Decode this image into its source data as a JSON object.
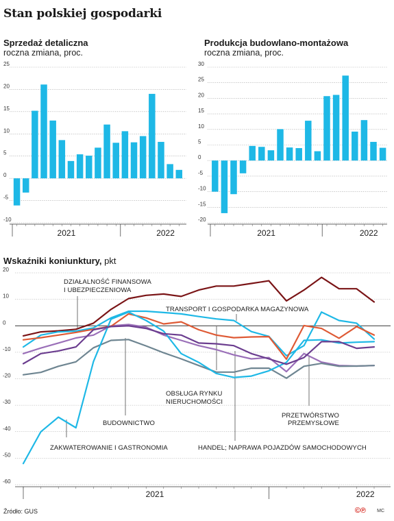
{
  "page": {
    "title": "Stan polskiej gospodarki"
  },
  "footer": {
    "source": "Źródło: GUS",
    "logo": "©℗",
    "author": "MC"
  },
  "chart_data": [
    {
      "type": "bar",
      "title": "Sprzedaż detaliczna",
      "subtitle": "roczna zmiana, proc.",
      "color": "#1eb8e6",
      "ylim": [
        -10,
        25
      ],
      "yticks": [
        25,
        20,
        15,
        10,
        5,
        0,
        -5,
        -10
      ],
      "year_labels": [
        {
          "label": "2021",
          "month_index": 5.5
        },
        {
          "label": "2022",
          "month_index": 16.5
        }
      ],
      "year_dividers": [
        -0.5,
        11.5,
        23.5
      ],
      "values": [
        -6.1,
        -3.2,
        15.2,
        21.1,
        13.0,
        8.6,
        3.9,
        5.4,
        5.1,
        6.9,
        12.1,
        8.0,
        10.6,
        8.1,
        9.5,
        19.0,
        8.2,
        3.2,
        1.9
      ]
    },
    {
      "type": "bar",
      "title": "Produkcja budowlano-montażowa",
      "subtitle": "roczna zmiana, proc.",
      "color": "#1eb8e6",
      "ylim": [
        -20,
        30
      ],
      "yticks": [
        30,
        25,
        20,
        15,
        10,
        5,
        0,
        -5,
        -10,
        -15,
        -20
      ],
      "year_labels": [
        {
          "label": "2021",
          "month_index": 5.5
        },
        {
          "label": "2022",
          "month_index": 16.5
        }
      ],
      "year_dividers": [
        -0.5,
        11.5,
        23.5
      ],
      "values": [
        -10.0,
        -16.9,
        -10.8,
        -4.1,
        4.7,
        4.4,
        3.3,
        10.1,
        4.2,
        4.0,
        12.8,
        3.0,
        20.7,
        21.1,
        27.3,
        9.3,
        13.0,
        6.0,
        4.1
      ]
    },
    {
      "type": "line",
      "title": "Wskaźniki koniunktury,",
      "unit": "pkt",
      "ylim": [
        -60,
        20
      ],
      "yticks": [
        20,
        10,
        0,
        -10,
        -20,
        -30,
        -40,
        -50,
        -60
      ],
      "year_labels": [
        {
          "label": "2021",
          "month_index": 7.5
        },
        {
          "label": "2022",
          "month_index": 19.5
        }
      ],
      "year_dividers": [
        -0.5,
        13.5,
        25.5
      ],
      "annotations": [
        {
          "text": "DZIAŁALNOŚĆ FINANSOWA"
        },
        {
          "text": "I UBEZPIECZENIOWA"
        },
        {
          "text": "TRANSPORT I GOSPODARKA MAGAZYNOWA"
        },
        {
          "text": "OBSŁUGA RYNKU"
        },
        {
          "text": "NIERUCHOMOŚCI"
        },
        {
          "text": "BUDOWNICTWO"
        },
        {
          "text": "PRZETWÓRSTWO"
        },
        {
          "text": "PRZEMYSŁOWE"
        },
        {
          "text": "ZAKWATEROWANIE I GASTRONOMIA"
        },
        {
          "text": "HANDEL; NAPRAWA POJAZDÓW SAMOCHODOWYCH"
        }
      ],
      "series": [
        {
          "key": "finanse",
          "color": "#7a1416",
          "values": [
            -3.8,
            -2.3,
            -1.9,
            -1.3,
            1.0,
            6.2,
            10.3,
            11.5,
            12.0,
            11.1,
            13.5,
            15.0,
            15.0,
            16.0,
            17.0,
            9.4,
            13.5,
            18.3,
            14.0,
            14.0,
            9.0
          ]
        },
        {
          "key": "transport",
          "color": "#1eb8e6",
          "values": [
            -8.0,
            -3.5,
            -2.3,
            -2.0,
            -0.8,
            3.0,
            5.5,
            5.5,
            5.0,
            4.5,
            3.5,
            2.6,
            2.0,
            -2.2,
            -4.0,
            -11.3,
            -7.5,
            5.2,
            2.0,
            1.0,
            -5.0
          ]
        },
        {
          "key": "nieruchomosci",
          "color": "#9a6fb8",
          "values": [
            -10.5,
            -8.4,
            -6.5,
            -4.6,
            -3.5,
            0.0,
            0.5,
            -0.5,
            -3.5,
            -5.5,
            -7.5,
            -9.0,
            -11.0,
            -12.5,
            -12.0,
            -17.3,
            -10.5,
            -13.7,
            -15.0,
            -15.2,
            -15.0
          ]
        },
        {
          "key": "budownictwo",
          "color": "#6e8591",
          "values": [
            -18.5,
            -17.6,
            -15.3,
            -13.6,
            -8.3,
            -5.5,
            -5.2,
            -7.6,
            -10.2,
            -12.5,
            -15.0,
            -17.5,
            -17.5,
            -16.0,
            -16.0,
            -19.8,
            -15.3,
            -14.2,
            -15.3,
            -15.2,
            -15.0
          ]
        },
        {
          "key": "przetworstwo",
          "color": "#de5a35",
          "values": [
            -5.3,
            -4.5,
            -3.5,
            -2.5,
            -1.3,
            -0.2,
            4.5,
            3.0,
            0.7,
            1.5,
            -1.5,
            -3.5,
            -4.5,
            -4.2,
            -4.1,
            -12.6,
            0.1,
            -1.0,
            -4.7,
            -0.3,
            -3.5
          ]
        },
        {
          "key": "gastronomia",
          "color": "#1eb8e6",
          "values": [
            -52.0,
            -40.0,
            -34.5,
            -38.5,
            -13.5,
            2.5,
            5.2,
            2.0,
            -2.0,
            -10.5,
            -13.8,
            -18.0,
            -19.5,
            -19.0,
            -17.0,
            -13.8,
            -5.5,
            -5.3,
            -6.5,
            -6.2,
            -6.0
          ]
        },
        {
          "key": "handel",
          "color": "#6b3d8f",
          "values": [
            -14.3,
            -10.5,
            -9.5,
            -8.0,
            -1.5,
            -0.3,
            0.0,
            -1.0,
            -3.0,
            -3.5,
            -6.5,
            -6.8,
            -7.5,
            -10.5,
            -12.5,
            -14.5,
            -12.0,
            -6.0,
            -6.0,
            -8.5,
            -8.0
          ]
        }
      ]
    }
  ]
}
